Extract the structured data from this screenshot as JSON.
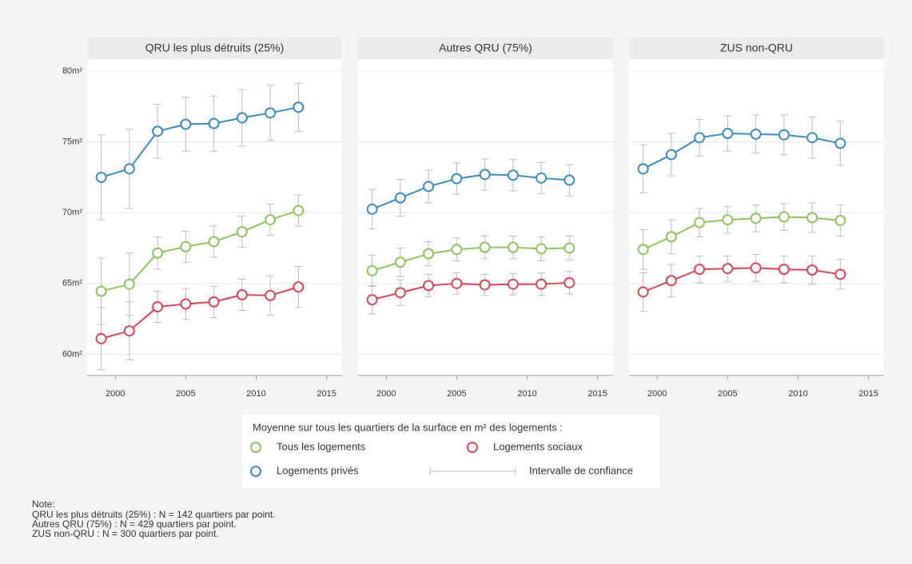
{
  "chart_data": [
    {
      "type": "line",
      "title": "QRU les plus détruits (25%)",
      "x": [
        1999,
        2001,
        2003,
        2005,
        2007,
        2009,
        2011,
        2013
      ],
      "xlim": [
        1998,
        2016.1
      ],
      "xticks": [
        2000,
        2005,
        2010,
        2015
      ],
      "ylim": [
        58.5,
        80.85
      ],
      "yticks": [
        {
          "value": 60,
          "label": "60m²"
        },
        {
          "value": 65,
          "label": "65m²"
        },
        {
          "value": 70,
          "label": "70m²"
        },
        {
          "value": 75,
          "label": "75m²"
        },
        {
          "value": 80,
          "label": "80m²"
        }
      ],
      "grid": true,
      "series": [
        {
          "name": "Tous les logements",
          "color": "#8dc45a",
          "values": [
            64.45,
            64.95,
            67.15,
            67.6,
            67.95,
            68.65,
            69.5,
            70.15
          ],
          "errors": [
            2.35,
            2.2,
            1.15,
            1.1,
            1.1,
            1.1,
            1.1,
            1.1
          ]
        },
        {
          "name": "Logements sociaux",
          "color": "#d9465a",
          "values": [
            61.1,
            61.65,
            63.35,
            63.55,
            63.7,
            64.2,
            64.15,
            64.75
          ],
          "errors": [
            2.2,
            2.05,
            1.1,
            1.1,
            1.1,
            1.1,
            1.4,
            1.45
          ]
        },
        {
          "name": "Logements privés",
          "color": "#3a8dc1",
          "values": [
            72.5,
            73.1,
            75.75,
            76.25,
            76.3,
            76.7,
            77.05,
            77.45
          ],
          "errors": [
            3.0,
            2.8,
            1.9,
            1.9,
            1.95,
            2.0,
            1.95,
            1.7
          ]
        }
      ]
    },
    {
      "type": "line",
      "title": "Autres QRU (75%)",
      "x": [
        1999,
        2001,
        2003,
        2005,
        2007,
        2009,
        2011,
        2013
      ],
      "xlim": [
        1998,
        2016.1
      ],
      "xticks": [
        2000,
        2005,
        2010,
        2015
      ],
      "series": [
        {
          "name": "Tous les logements",
          "color": "#8dc45a",
          "values": [
            65.9,
            66.5,
            67.1,
            67.4,
            67.55,
            67.55,
            67.45,
            67.5
          ],
          "errors": [
            1.1,
            1.0,
            0.85,
            0.8,
            0.8,
            0.8,
            0.85,
            0.85
          ]
        },
        {
          "name": "Logements sociaux",
          "color": "#d9465a",
          "values": [
            63.85,
            64.35,
            64.85,
            65.0,
            64.9,
            64.95,
            64.95,
            65.05
          ],
          "errors": [
            1.0,
            0.9,
            0.8,
            0.75,
            0.75,
            0.75,
            0.8,
            0.8
          ]
        },
        {
          "name": "Logements privés",
          "color": "#3a8dc1",
          "values": [
            70.25,
            71.05,
            71.85,
            72.4,
            72.7,
            72.65,
            72.45,
            72.3
          ],
          "errors": [
            1.4,
            1.3,
            1.15,
            1.1,
            1.1,
            1.1,
            1.1,
            1.1
          ]
        }
      ]
    },
    {
      "type": "line",
      "title": "ZUS non-QRU",
      "x": [
        1999,
        2001,
        2003,
        2005,
        2007,
        2009,
        2011,
        2013
      ],
      "xlim": [
        1998,
        2016.1
      ],
      "xticks": [
        2000,
        2005,
        2010,
        2015
      ],
      "series": [
        {
          "name": "Tous les logements",
          "color": "#8dc45a",
          "values": [
            67.4,
            68.3,
            69.3,
            69.5,
            69.6,
            69.7,
            69.65,
            69.45
          ],
          "errors": [
            1.4,
            1.2,
            1.0,
            0.95,
            0.95,
            0.95,
            1.05,
            1.1
          ]
        },
        {
          "name": "Logements sociaux",
          "color": "#d9465a",
          "values": [
            64.4,
            65.2,
            66.0,
            66.05,
            66.1,
            66.0,
            65.95,
            65.65
          ],
          "errors": [
            1.35,
            1.15,
            0.95,
            0.9,
            0.95,
            0.95,
            1.0,
            1.05
          ]
        },
        {
          "name": "Logements privés",
          "color": "#3a8dc1",
          "values": [
            73.1,
            74.1,
            75.3,
            75.6,
            75.55,
            75.5,
            75.3,
            74.9
          ],
          "errors": [
            1.7,
            1.5,
            1.3,
            1.25,
            1.35,
            1.4,
            1.45,
            1.55
          ]
        }
      ]
    }
  ],
  "legend": {
    "title": "Moyenne sur tous les quartiers de la surface en m² des logements :",
    "ci_label": "Intervalle de confiance"
  },
  "note": {
    "title": "Note:",
    "lines": [
      "QRU les plus détruits (25%) : N = 142 quartiers par point.",
      "Autres QRU (75%) : N = 429 quartiers par point.",
      "ZUS non-QRU : N = 300 quartiers par point."
    ]
  }
}
